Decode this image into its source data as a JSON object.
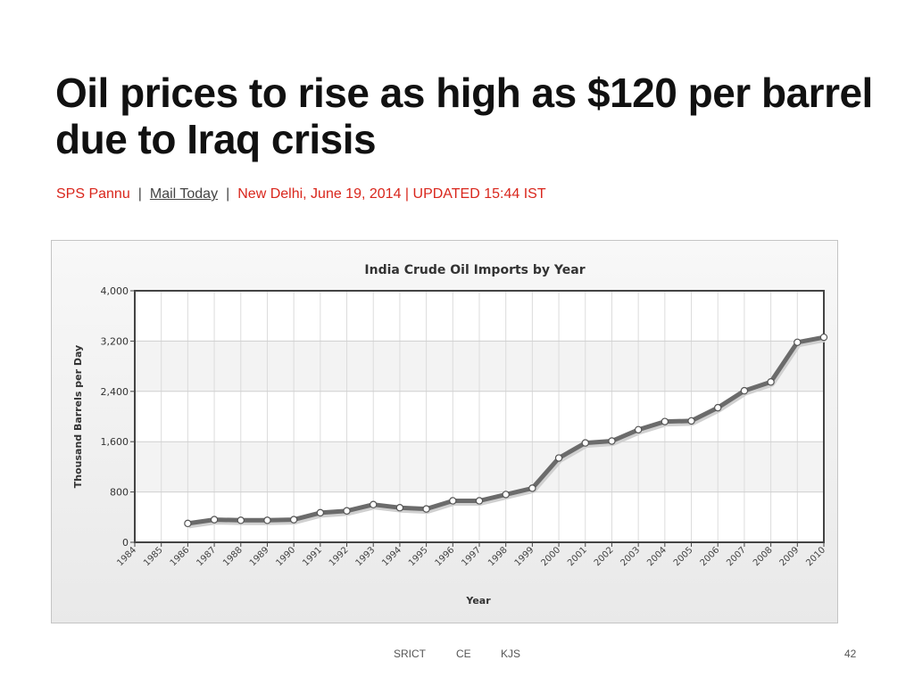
{
  "headline": "Oil prices to rise as high as $120 per barrel due to Iraq crisis",
  "byline": {
    "author": "SPS Pannu",
    "source": "Mail Today",
    "dateline": "New Delhi, June 19, 2014 | UPDATED 15:44 IST",
    "separator": "|"
  },
  "chart_data": {
    "type": "line",
    "title": "India Crude Oil Imports by Year",
    "xlabel": "Year",
    "ylabel": "Thousand Barrels per Day",
    "categories": [
      "1984",
      "1985",
      "1986",
      "1987",
      "1988",
      "1989",
      "1990",
      "1991",
      "1992",
      "1993",
      "1994",
      "1995",
      "1996",
      "1997",
      "1998",
      "1999",
      "2000",
      "2001",
      "2002",
      "2003",
      "2004",
      "2005",
      "2006",
      "2007",
      "2008",
      "2009",
      "2010"
    ],
    "series": [
      {
        "values": [
          null,
          null,
          300,
          360,
          350,
          350,
          360,
          470,
          500,
          600,
          550,
          530,
          660,
          660,
          760,
          860,
          1340,
          1580,
          1610,
          1790,
          1920,
          1930,
          2140,
          2410,
          2550,
          3180,
          3260
        ],
        "color": "#6b6b6b"
      }
    ],
    "ylim": [
      0,
      4000
    ],
    "yticks": [
      "0",
      "800",
      "1,600",
      "2,400",
      "3,200",
      "4,000"
    ],
    "grid": true
  },
  "footer": {
    "left": "SRICT",
    "middle": "CE",
    "right": "KJS",
    "page_number": "42"
  }
}
